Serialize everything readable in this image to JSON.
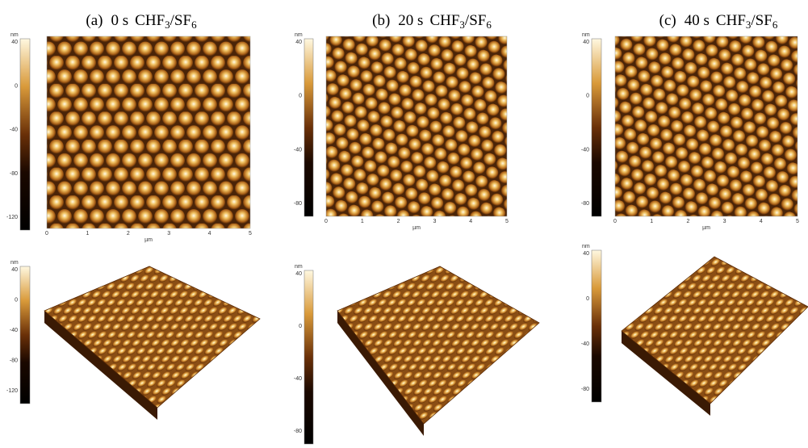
{
  "panels": [
    {
      "label": "(a)",
      "time": "0 s",
      "gas": [
        "CHF",
        "3",
        "/SF",
        "6"
      ],
      "unit_z": "nm",
      "z_ticks": [
        "40",
        "0",
        "-40",
        "-80",
        "-120"
      ],
      "unit_xy": "µm",
      "xy_ticks": [
        "0",
        "1",
        "2",
        "3",
        "4",
        "5"
      ]
    },
    {
      "label": "(b)",
      "time": "20 s",
      "gas": [
        "CHF",
        "3",
        "/SF",
        "6"
      ],
      "unit_z": "nm",
      "z_ticks": [
        "40",
        "0",
        "-40",
        "-80"
      ],
      "unit_xy": "µm",
      "xy_ticks": [
        "0",
        "1",
        "2",
        "3",
        "4",
        "5"
      ]
    },
    {
      "label": "(c)",
      "time": "40 s",
      "gas": [
        "CHF",
        "3",
        "/SF",
        "6"
      ],
      "unit_z": "nm",
      "z_ticks": [
        "40",
        "0",
        "-40",
        "-80"
      ],
      "unit_xy": "µm",
      "xy_ticks": [
        "0",
        "1",
        "2",
        "3",
        "4",
        "5"
      ]
    }
  ]
}
